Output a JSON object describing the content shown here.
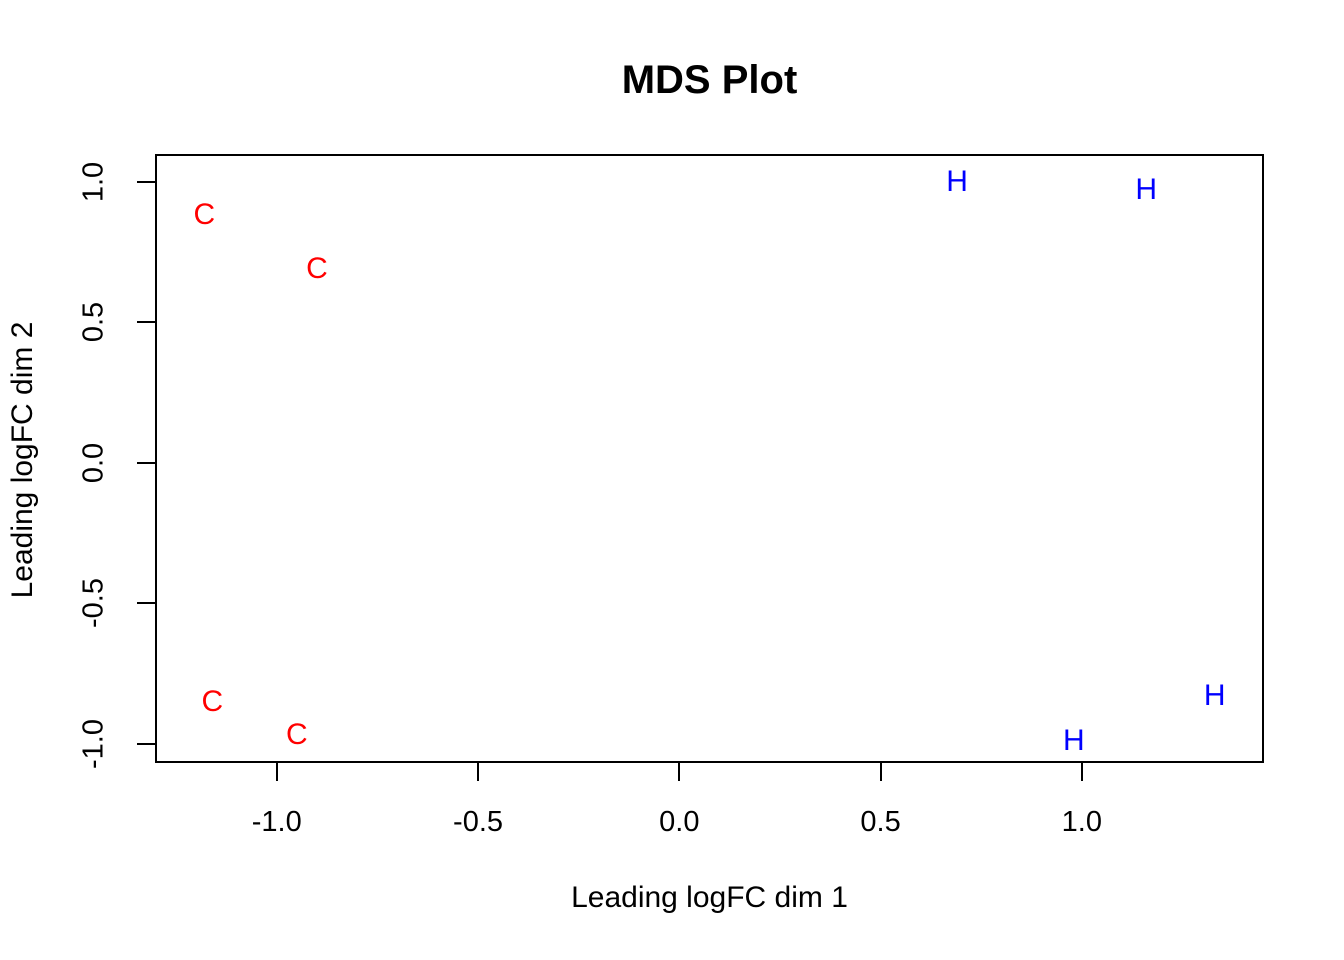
{
  "figure": {
    "background_color": "#ffffff",
    "foreground_color": "#000000"
  },
  "chart_data": {
    "type": "scatter",
    "title": "MDS Plot",
    "xlabel": "Leading logFC dim 1",
    "ylabel": "Leading logFC dim 2",
    "xlim": [
      -1.3,
      1.45
    ],
    "ylim": [
      -1.065,
      1.095
    ],
    "x_ticks": [
      -1.0,
      -0.5,
      0.0,
      0.5,
      1.0
    ],
    "x_tick_labels": [
      "-1.0",
      "-0.5",
      "0.0",
      "0.5",
      "1.0"
    ],
    "y_ticks": [
      -1.0,
      -0.5,
      0.0,
      0.5,
      1.0
    ],
    "y_tick_labels": [
      "-1.0",
      "-0.5",
      "0.0",
      "0.5",
      "1.0"
    ],
    "grid": false,
    "legend_position": "none",
    "point_style": "text-labels",
    "series": [
      {
        "name": "C",
        "label": "C",
        "color": "#ff0000",
        "points": [
          {
            "x": -1.18,
            "y": 0.88
          },
          {
            "x": -0.9,
            "y": 0.69
          },
          {
            "x": -1.16,
            "y": -0.85
          },
          {
            "x": -0.95,
            "y": -0.97
          }
        ]
      },
      {
        "name": "H",
        "label": "H",
        "color": "#0000ff",
        "points": [
          {
            "x": 0.69,
            "y": 1.0
          },
          {
            "x": 1.16,
            "y": 0.97
          },
          {
            "x": 1.33,
            "y": -0.83
          },
          {
            "x": 0.98,
            "y": -0.99
          }
        ]
      }
    ]
  }
}
